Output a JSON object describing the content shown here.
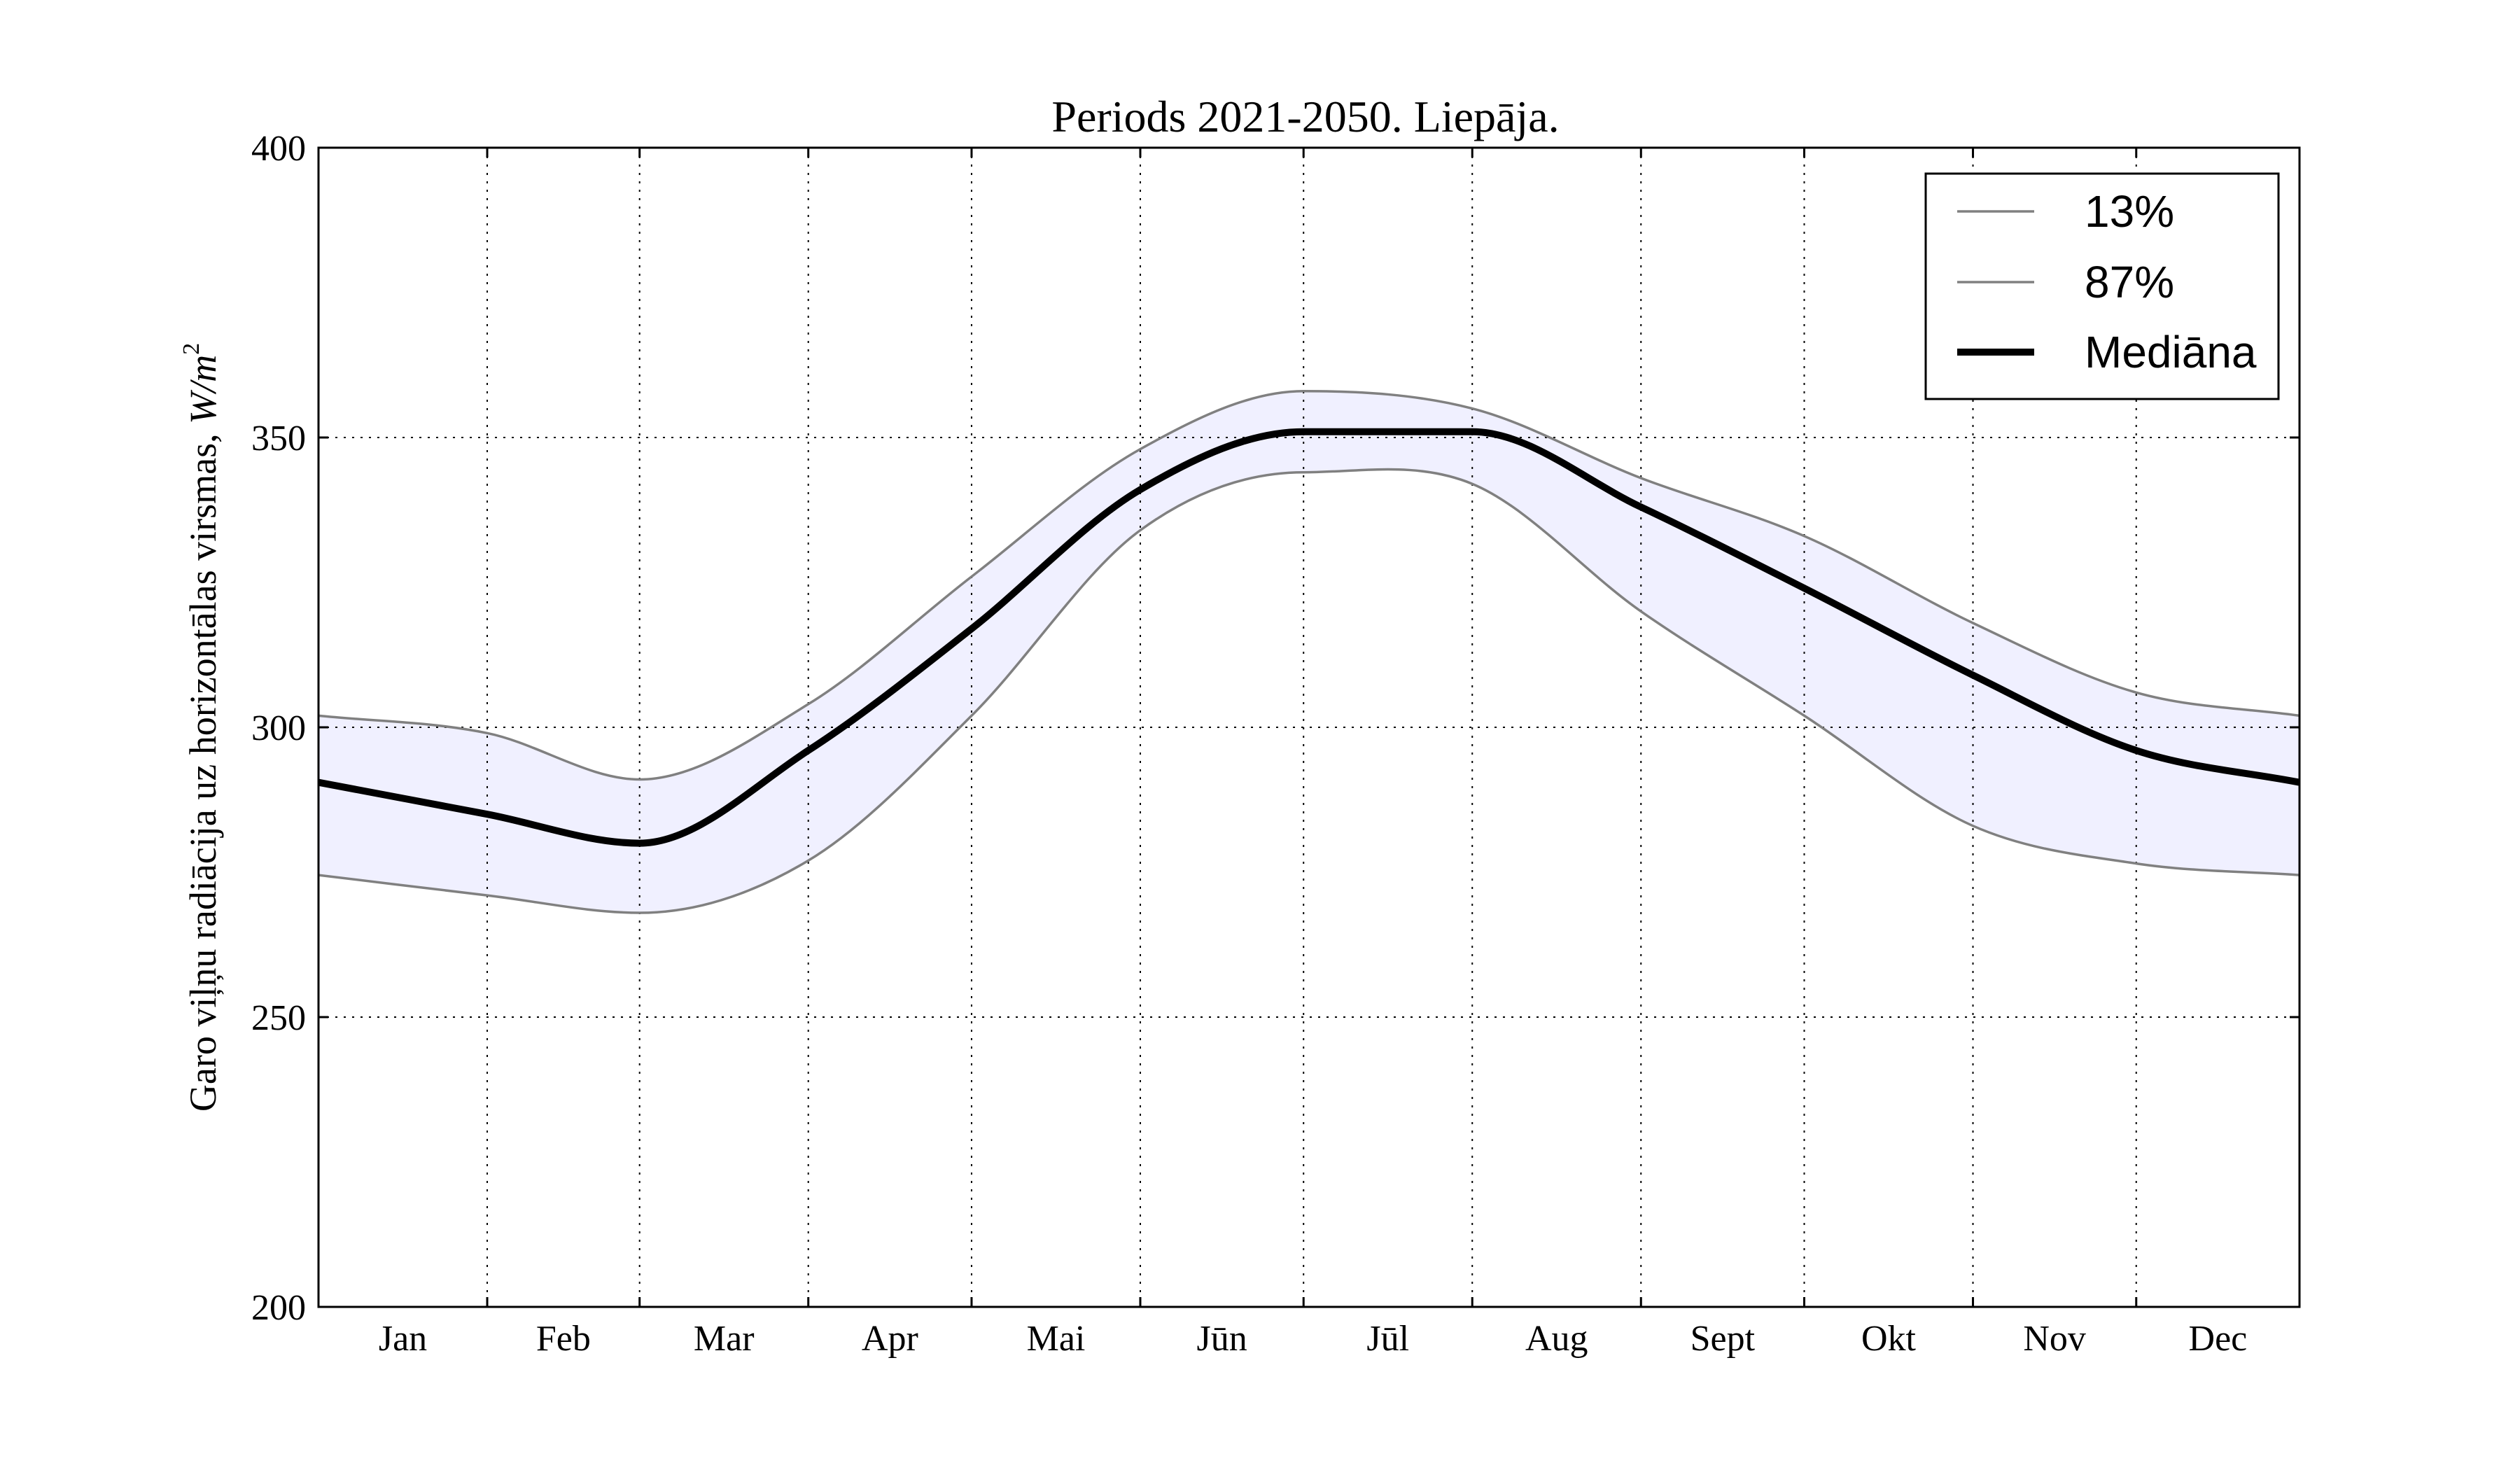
{
  "chart_data": {
    "type": "line",
    "title": "Periods 2021-2050. Liepāja.",
    "xlabel": "",
    "ylabel": "Garo viļņu radiācija uz horizontālas virsmas, W/m²",
    "ylabel_text": "Garo viļņu radiācija uz horizontālas virsmas, ",
    "ylabel_unit": "W/m",
    "ylabel_unit_sup": "2",
    "ylim": [
      200,
      400
    ],
    "yticks": [
      200,
      250,
      300,
      350,
      400
    ],
    "categories": [
      "Jan",
      "Feb",
      "Mar",
      "Apr",
      "Mai",
      "Jūn",
      "Jūl",
      "Aug",
      "Sept",
      "Okt",
      "Nov",
      "Dec"
    ],
    "grid": true,
    "legend_position": "top-right",
    "x": [
      1,
      32,
      60,
      91,
      121,
      152,
      182,
      213,
      244,
      274,
      305,
      335,
      365
    ],
    "series": [
      {
        "name": "13%",
        "color": "#808080",
        "values": [
          274.5,
          271,
          268,
          277,
          302,
          334,
          344,
          342,
          320,
          302,
          283,
          276.5,
          274.5
        ]
      },
      {
        "name": "87%",
        "color": "#808080",
        "values": [
          302,
          299,
          291,
          304,
          326,
          348,
          358,
          355,
          343,
          333,
          318,
          306,
          302
        ]
      },
      {
        "name": "Mediāna",
        "color": "#000000",
        "values": [
          290.5,
          285,
          280,
          296,
          317,
          341,
          351,
          351,
          338,
          324,
          309,
          296,
          290.5
        ]
      }
    ],
    "band_fill_color": "#f0f0ff",
    "grid_color": "#000000"
  }
}
